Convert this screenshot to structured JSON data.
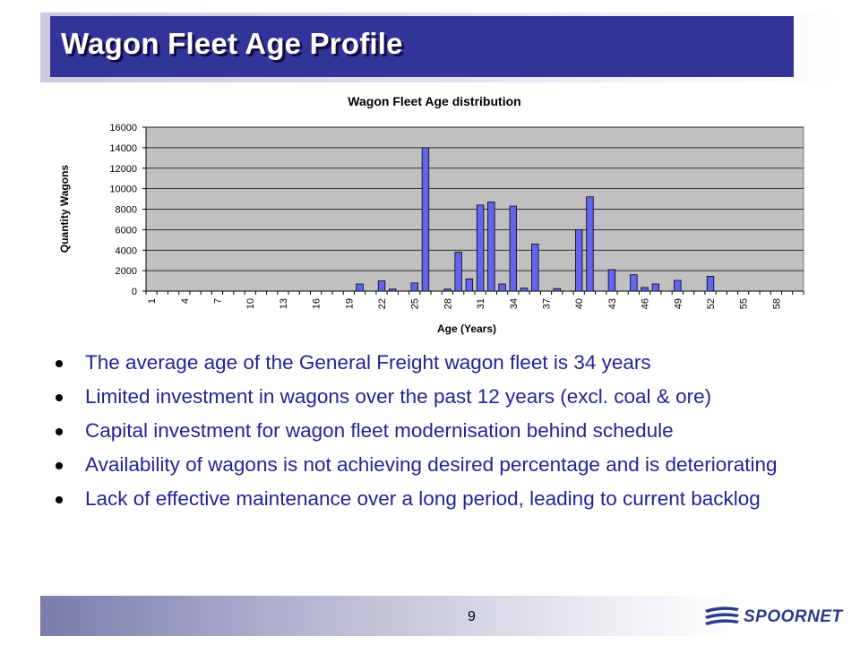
{
  "slide": {
    "title": "Wagon Fleet Age Profile",
    "page_number": "9",
    "logo_text": "SPOORNET"
  },
  "bullets": [
    "The average age of the General Freight wagon fleet is 34 years",
    "Limited investment in wagons over the past 12 years (excl. coal & ore)",
    "Capital investment for wagon fleet modernisation behind schedule",
    "Availability of wagons is not achieving desired percentage and is deteriorating",
    "Lack of effective maintenance over a long period, leading to current backlog"
  ],
  "colors": {
    "title_bg": "#33349a",
    "bullet_text": "#22239a",
    "bar_fill": "#6464ef",
    "plot_bg": "#c0c0c0"
  },
  "chart_data": {
    "type": "bar",
    "title": "Wagon Fleet Age distribution",
    "xlabel": "Age (Years)",
    "ylabel": "Quantity Wagons",
    "ylim": [
      0,
      16000
    ],
    "yticks": [
      0,
      2000,
      4000,
      6000,
      8000,
      10000,
      12000,
      14000,
      16000
    ],
    "xtick_labels": [
      "1",
      "4",
      "7",
      "10",
      "13",
      "16",
      "19",
      "22",
      "25",
      "28",
      "31",
      "34",
      "37",
      "40",
      "43",
      "46",
      "49",
      "52",
      "55",
      "58"
    ],
    "grid": true,
    "categories": [
      1,
      2,
      3,
      4,
      5,
      6,
      7,
      8,
      9,
      10,
      11,
      12,
      13,
      14,
      15,
      16,
      17,
      18,
      19,
      20,
      21,
      22,
      23,
      24,
      25,
      26,
      27,
      28,
      29,
      30,
      31,
      32,
      33,
      34,
      35,
      36,
      37,
      38,
      39,
      40,
      41,
      42,
      43,
      44,
      45,
      46,
      47,
      48,
      49,
      50,
      51,
      52,
      53,
      54,
      55,
      56,
      57,
      58,
      59,
      60
    ],
    "values": [
      0,
      0,
      0,
      0,
      0,
      0,
      0,
      0,
      0,
      0,
      0,
      0,
      0,
      0,
      0,
      0,
      0,
      0,
      0,
      700,
      0,
      1000,
      200,
      0,
      800,
      14000,
      0,
      200,
      3800,
      1200,
      8400,
      8700,
      700,
      8300,
      300,
      4600,
      0,
      250,
      0,
      6000,
      9200,
      0,
      2100,
      0,
      1600,
      350,
      700,
      0,
      1050,
      0,
      0,
      1450,
      0,
      0,
      0,
      0,
      0,
      0,
      0,
      0
    ]
  }
}
